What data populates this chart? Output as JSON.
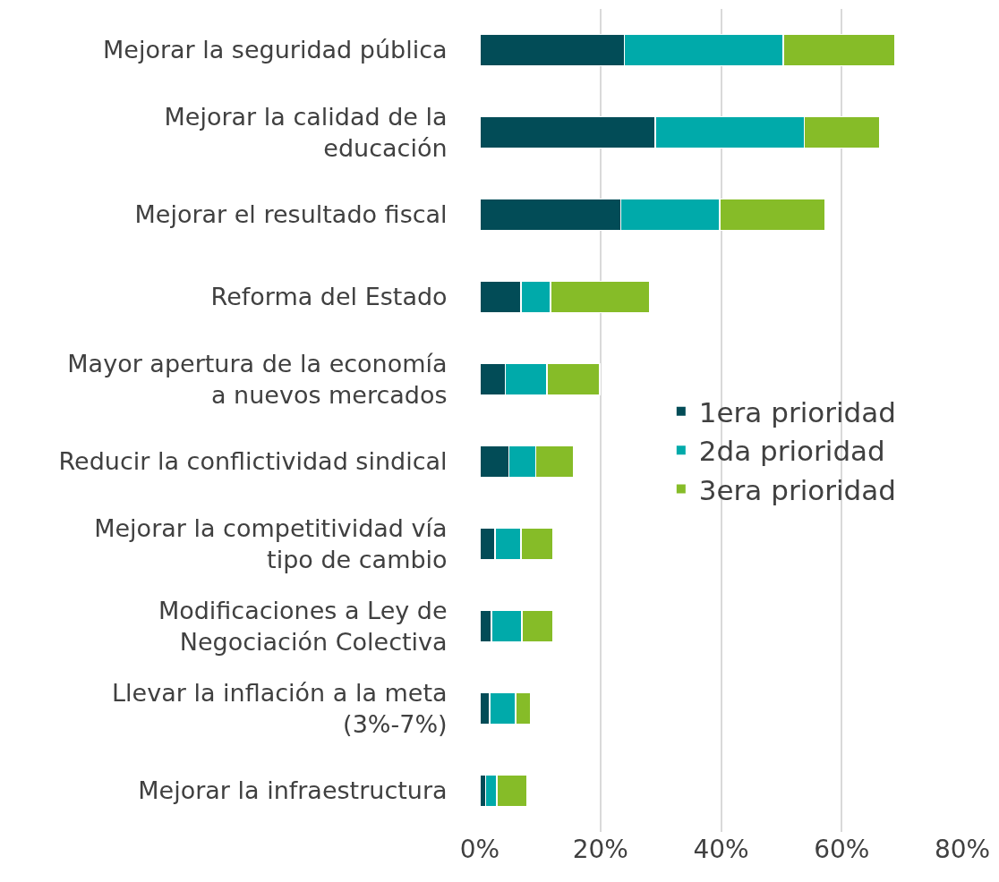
{
  "chart_data": {
    "type": "bar",
    "orientation": "horizontal",
    "stacked": true,
    "categories": [
      "Mejorar la seguridad pública",
      "Mejorar la calidad de la\neducación",
      "Mejorar el resultado fiscal",
      "Reforma del Estado",
      "Mayor apertura de la economía\na nuevos mercados",
      "Reducir la conflictividad sindical",
      "Mejorar la competitividad vía\ntipo de cambio",
      "Modificaciones a Ley de\nNegociación Colectiva",
      "Llevar la inflación a la meta\n(3%-7%)",
      "Mejorar la infraestructura"
    ],
    "series": [
      {
        "name": "1era prioridad",
        "color": "#024c57",
        "values": [
          24.0,
          29.1,
          23.4,
          6.8,
          4.2,
          4.8,
          2.5,
          1.9,
          1.6,
          1.0
        ]
      },
      {
        "name": "2da prioridad",
        "color": "#00aaaa",
        "values": [
          26.3,
          24.7,
          16.4,
          4.9,
          6.9,
          4.5,
          4.3,
          5.1,
          4.3,
          1.8
        ]
      },
      {
        "name": "3era prioridad",
        "color": "#86bc28",
        "values": [
          18.6,
          12.5,
          17.4,
          16.5,
          8.8,
          6.3,
          5.3,
          5.1,
          2.5,
          5.1
        ]
      }
    ],
    "xlim": [
      0,
      80
    ],
    "xticks": [
      {
        "value": 0,
        "label": "0%"
      },
      {
        "value": 20,
        "label": "20%"
      },
      {
        "value": 40,
        "label": "40%"
      },
      {
        "value": 60,
        "label": "60%"
      },
      {
        "value": 80,
        "label": "80%"
      }
    ],
    "grid": "x",
    "legend": "right"
  }
}
